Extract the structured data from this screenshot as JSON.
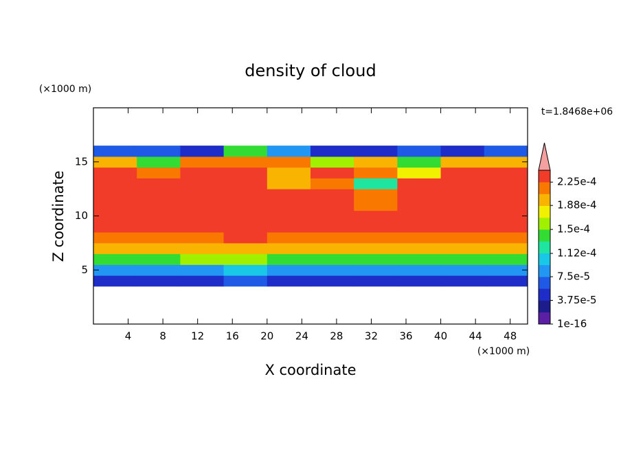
{
  "chart_data": {
    "type": "contour",
    "title": "density of cloud",
    "x_label": "X coordinate",
    "y_label": "Z coordinate",
    "x_unit": "(×1000 m)",
    "y_unit": "(×1000 m)",
    "time_label": "t=1.8468e+06",
    "xlim": [
      0,
      50
    ],
    "ylim": [
      0,
      20
    ],
    "xticks": [
      4,
      8,
      12,
      16,
      20,
      24,
      28,
      32,
      36,
      40,
      44,
      48
    ],
    "yticks": [
      5,
      10,
      15
    ],
    "x": [
      2.5,
      7.5,
      12.5,
      17.5,
      22.5,
      27.5,
      32.5,
      37.5,
      42.5,
      47.5
    ],
    "z": [
      4,
      5,
      6,
      7,
      8,
      9,
      10,
      11,
      12,
      13,
      14,
      15,
      16
    ],
    "values": [
      [
        5e-05,
        5e-05,
        5e-05,
        6e-05,
        5e-05,
        5e-05,
        5e-05,
        5e-05,
        5e-05,
        5e-05
      ],
      [
        9e-05,
        9e-05,
        9e-05,
        0.0001,
        9e-05,
        9e-05,
        9e-05,
        9e-05,
        9e-05,
        9e-05
      ],
      [
        0.00015,
        0.00015,
        0.000155,
        0.00016,
        0.00015,
        0.00015,
        0.00015,
        0.00015,
        0.00015,
        0.00015
      ],
      [
        0.000195,
        0.000195,
        0.000195,
        0.0002,
        0.000195,
        0.000195,
        0.000195,
        0.000195,
        0.000195,
        0.000195
      ],
      [
        0.00022,
        0.00022,
        0.00022,
        0.000225,
        0.00022,
        0.00022,
        0.00022,
        0.00022,
        0.00022,
        0.00022
      ],
      [
        0.00023,
        0.000228,
        0.00023,
        0.00023,
        0.00023,
        0.000228,
        0.00023,
        0.00023,
        0.00023,
        0.00023
      ],
      [
        0.000235,
        0.000235,
        0.000235,
        0.000235,
        0.000235,
        0.000235,
        0.00023,
        0.000235,
        0.000235,
        0.000235
      ],
      [
        0.000235,
        0.000235,
        0.000235,
        0.000235,
        0.000235,
        0.00023,
        0.00022,
        0.000235,
        0.000235,
        0.000235
      ],
      [
        0.000235,
        0.000235,
        0.000235,
        0.000235,
        0.00023,
        0.00023,
        0.00022,
        0.000235,
        0.000235,
        0.000235
      ],
      [
        0.00023,
        0.00023,
        0.00023,
        0.00023,
        0.00019,
        0.00022,
        0.00013,
        0.000225,
        0.00023,
        0.00023
      ],
      [
        0.000225,
        0.00022,
        0.000225,
        0.000225,
        0.0002,
        0.000225,
        0.00022,
        0.00018,
        0.000225,
        0.000225
      ],
      [
        0.0002,
        0.00014,
        0.00021,
        0.00022,
        0.000215,
        0.00016,
        0.0002,
        0.00015,
        0.0002,
        0.0002
      ],
      [
        6e-05,
        6e-05,
        4e-05,
        0.00015,
        8e-05,
        5e-05,
        5e-05,
        6e-05,
        5e-05,
        6e-05
      ]
    ],
    "clim": [
      0,
      0.00024375
    ],
    "colors": [
      "#5b1fa6",
      "#1c1c8c",
      "#1e2cc8",
      "#1f5ae6",
      "#2196f3",
      "#19c8e6",
      "#1ee6a0",
      "#32dc32",
      "#a0f000",
      "#f0f000",
      "#f8b400",
      "#f87800",
      "#f03c28"
    ],
    "extend_color": "#f4a0a0",
    "cbar_ticks": [
      {
        "value": 1e-16,
        "label": "1e-16"
      },
      {
        "value": 3.75e-05,
        "label": "3.75e-5"
      },
      {
        "value": 7.5e-05,
        "label": "7.5e-5"
      },
      {
        "value": 0.000112,
        "label": "1.12e-4"
      },
      {
        "value": 0.00015,
        "label": "1.5e-4"
      },
      {
        "value": 0.000188,
        "label": "1.88e-4"
      },
      {
        "value": 0.000225,
        "label": "2.25e-4"
      }
    ]
  }
}
